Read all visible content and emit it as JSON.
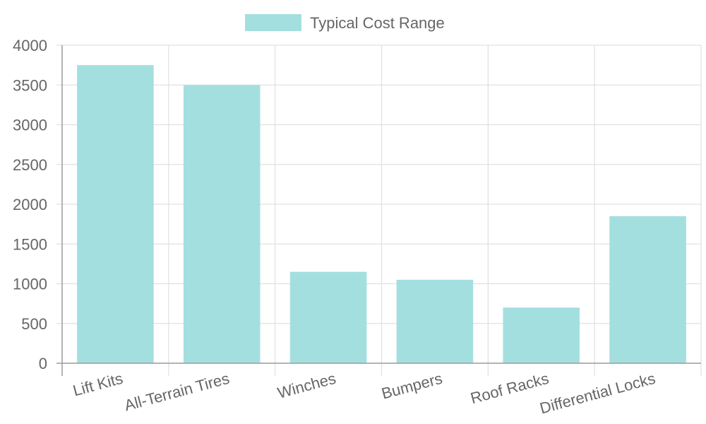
{
  "chart_data": {
    "type": "bar",
    "categories": [
      "Lift Kits",
      "All-Terrain Tires",
      "Winches",
      "Bumpers",
      "Roof Racks",
      "Differential Locks"
    ],
    "series": [
      {
        "name": "Typical Cost Range",
        "values": [
          3750,
          3500,
          1150,
          1050,
          700,
          1850
        ],
        "color": "#a4dfe0"
      }
    ],
    "ylim": [
      0,
      4000
    ],
    "yticks": [
      0,
      500,
      1000,
      1500,
      2000,
      2500,
      3000,
      3500,
      4000
    ],
    "grid": true,
    "legend_position": "top-center",
    "x_tick_rotation_deg": -15
  },
  "colors": {
    "bar_fill": "#a4dfe0",
    "grid": "#e0e0e0",
    "axis": "#9e9e9e",
    "text": "#666666"
  }
}
